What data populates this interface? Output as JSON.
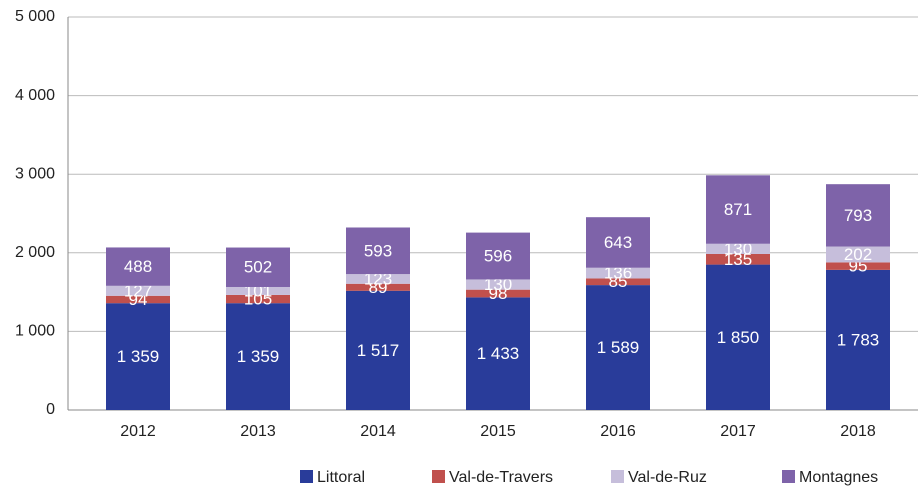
{
  "chart_data": {
    "type": "stacked_bar",
    "categories": [
      "2012",
      "2013",
      "2014",
      "2015",
      "2016",
      "2017",
      "2018"
    ],
    "series": [
      {
        "name": "Littoral",
        "color": "#293c9a",
        "values": [
          1359,
          1359,
          1517,
          1433,
          1589,
          1850,
          1783
        ],
        "value_labels": [
          "1 359",
          "1 359",
          "1 517",
          "1 433",
          "1 589",
          "1 850",
          "1 783"
        ]
      },
      {
        "name": "Val-de-Travers",
        "color": "#c0504d",
        "values": [
          94,
          105,
          89,
          98,
          85,
          135,
          95
        ]
      },
      {
        "name": "Val-de-Ruz",
        "color": "#c6bedb",
        "values": [
          127,
          101,
          123,
          130,
          136,
          130,
          202
        ]
      },
      {
        "name": "Montagnes",
        "color": "#7e63a9",
        "values": [
          488,
          502,
          593,
          596,
          643,
          871,
          793
        ]
      }
    ],
    "ylim": [
      0,
      5000
    ],
    "yticks": [
      0,
      {
        "value": 1000,
        "label": "1 000"
      },
      {
        "value": 2000,
        "label": "2 000"
      },
      {
        "value": 3000,
        "label": "3 000"
      },
      {
        "value": 4000,
        "label": "4 000"
      },
      {
        "value": 5000,
        "label": "5 000"
      }
    ],
    "grid": true
  }
}
